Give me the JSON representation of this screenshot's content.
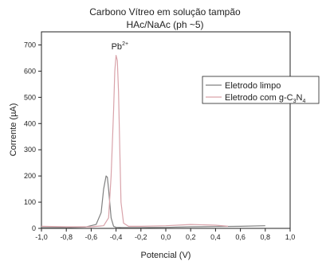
{
  "chart_data": {
    "type": "line",
    "title": "Carbono Vítreo em solução tampão",
    "subtitle": "HAc/NaAc (ph ~5)",
    "xlabel": "Potencial (V)",
    "ylabel": "Corrente (µA)",
    "xlim": [
      -1.0,
      1.0
    ],
    "ylim": [
      0,
      750
    ],
    "xticks": [
      "-1,0",
      "-0,8",
      "-0,6",
      "-0,4",
      "-0,2",
      "0,0",
      "0,2",
      "0,4",
      "0,6",
      "0,8",
      "1,0"
    ],
    "xtick_values": [
      -1.0,
      -0.8,
      -0.6,
      -0.4,
      -0.2,
      0.0,
      0.2,
      0.4,
      0.6,
      0.8,
      1.0
    ],
    "yticks": [
      "0",
      "100",
      "200",
      "300",
      "400",
      "500",
      "600",
      "700"
    ],
    "ytick_values": [
      0,
      100,
      200,
      300,
      400,
      500,
      600,
      700
    ],
    "grid": false,
    "legend_position": "top-right",
    "annotations": [
      {
        "text": "Pb",
        "superscript": "2+",
        "x": -0.4,
        "y": 665
      }
    ],
    "series": [
      {
        "name": "Eletrodo limpo",
        "color": "#808080",
        "x": [
          -1.0,
          -0.8,
          -0.65,
          -0.56,
          -0.52,
          -0.5,
          -0.48,
          -0.47,
          -0.46,
          -0.44,
          -0.42,
          -0.4,
          -0.35,
          -0.2,
          0.0,
          0.2,
          0.4,
          0.6,
          0.8
        ],
        "y": [
          3,
          3,
          5,
          15,
          60,
          150,
          200,
          195,
          150,
          40,
          8,
          4,
          3,
          3,
          4,
          6,
          7,
          8,
          10
        ]
      },
      {
        "name": "Eletrodo com g-C3N4",
        "legend_parts": [
          "Eletrodo com g-C",
          "3",
          "N",
          "4"
        ],
        "color": "#d9a3aa",
        "x": [
          -1.0,
          -0.8,
          -0.6,
          -0.5,
          -0.46,
          -0.44,
          -0.42,
          -0.41,
          -0.4,
          -0.39,
          -0.38,
          -0.37,
          -0.36,
          -0.34,
          -0.3,
          -0.2,
          0.0,
          0.2,
          0.4,
          0.5
        ],
        "y": [
          8,
          6,
          6,
          10,
          40,
          200,
          450,
          600,
          660,
          640,
          520,
          300,
          100,
          20,
          8,
          8,
          10,
          15,
          12,
          8
        ]
      }
    ]
  }
}
